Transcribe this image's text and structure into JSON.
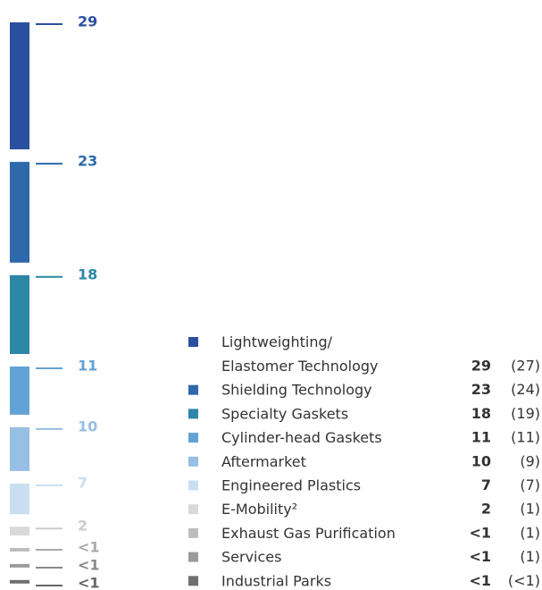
{
  "chart_data": {
    "type": "stacked-column",
    "categories": [
      "Lightweighting/\nElastomer Technology",
      "Shielding Technology",
      "Specialty Gaskets",
      "Cylinder-head Gaskets",
      "Aftermarket",
      "Engineered Plastics",
      "E-Mobility²",
      "Exhaust Gas Purification",
      "Services",
      "Industrial Parks"
    ],
    "colors": [
      "#2b4f9f",
      "#2d69ab",
      "#2b87a5",
      "#62a2d4",
      "#97bee3",
      "#cadef1",
      "#d9d9d9",
      "#bdbdbd",
      "#9b9b9b",
      "#6f6f6f"
    ],
    "label_colors": [
      "#2b4f9f",
      "#2d69ab",
      "#2b87a5",
      "#62a2d4",
      "#97bee3",
      "#cadef1",
      "#cccccc",
      "#aaaaaa",
      "#8a8a8a",
      "#666666"
    ],
    "series": [
      {
        "name": "current",
        "values": [
          29,
          23,
          18,
          11,
          10,
          7,
          2,
          0.8,
          0.8,
          0.8
        ],
        "value_labels": [
          "29",
          "23",
          "18",
          "11",
          "10",
          "7",
          "2",
          "<1",
          "<1",
          "<1"
        ]
      },
      {
        "name": "prior",
        "values": [
          27,
          24,
          19,
          11,
          9,
          7,
          1,
          1,
          1,
          0.8
        ],
        "value_labels": [
          "(27)",
          "(24)",
          "(19)",
          "(11)",
          "(9)",
          "(7)",
          "(1)",
          "(1)",
          "(1)",
          "(<1)"
        ]
      }
    ]
  }
}
